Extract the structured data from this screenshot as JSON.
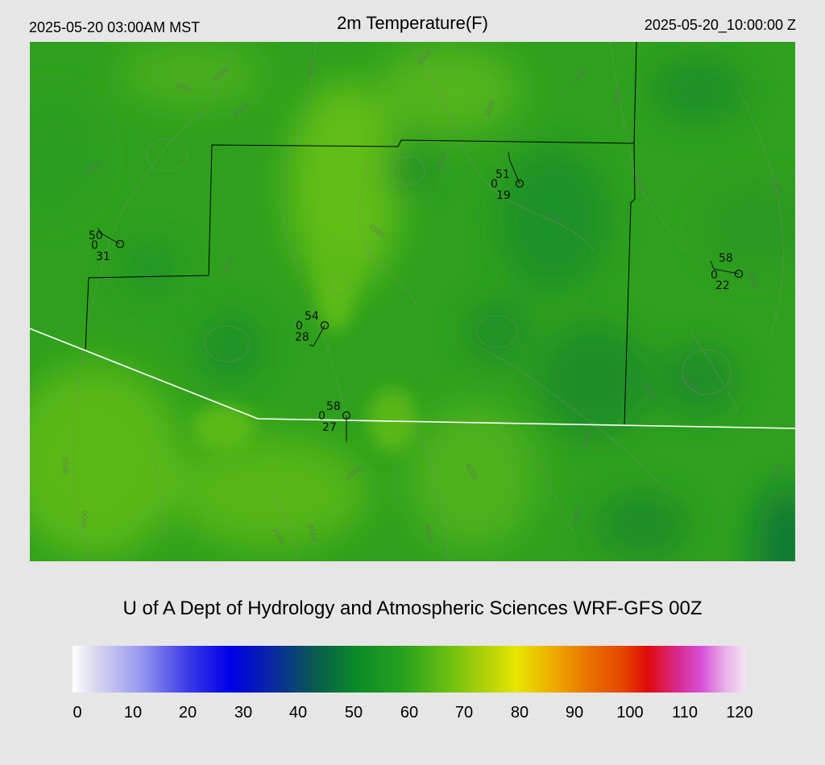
{
  "header": {
    "valid_local": "2025-05-20 03:00AM MST",
    "title": "2m Temperature(F)",
    "valid_utc": "2025-05-20_10:00:00 Z"
  },
  "credit": "U of A Dept of Hydrology and Atmospheric Sciences WRF-GFS 00Z",
  "colorbar": {
    "ticks": [
      "0",
      "10",
      "20",
      "30",
      "40",
      "50",
      "60",
      "70",
      "80",
      "90",
      "100",
      "110",
      "120"
    ],
    "min": 0,
    "max": 120
  },
  "stations": [
    {
      "id": "stn-nw",
      "temp": "51",
      "wind": "0",
      "dew": "19"
    },
    {
      "id": "stn-w",
      "temp": "50",
      "wind": "0",
      "dew": "31"
    },
    {
      "id": "stn-e",
      "temp": "58",
      "wind": "0",
      "dew": "22"
    },
    {
      "id": "stn-c",
      "temp": "54",
      "wind": "0",
      "dew": "28"
    },
    {
      "id": "stn-s",
      "temp": "58",
      "wind": "0",
      "dew": "27"
    }
  ],
  "contour_labels": [
    "4000",
    "4000",
    "3500",
    "3000",
    "4000",
    "3500",
    "4500",
    "4500",
    "5000",
    "3000",
    "4500",
    "5000",
    "4000",
    "4500",
    "4000",
    "3500",
    "4000",
    "4500",
    "4000",
    "3000",
    "4500",
    "4000",
    "4000",
    "4000",
    "4500",
    "4500",
    "4000",
    "4000"
  ],
  "colors": {
    "background": "#e6e6e6",
    "field_light": "#5fbe16",
    "field_dark": "#0f8a2a",
    "boundary": "#000000",
    "border_line": "#ffffff"
  }
}
